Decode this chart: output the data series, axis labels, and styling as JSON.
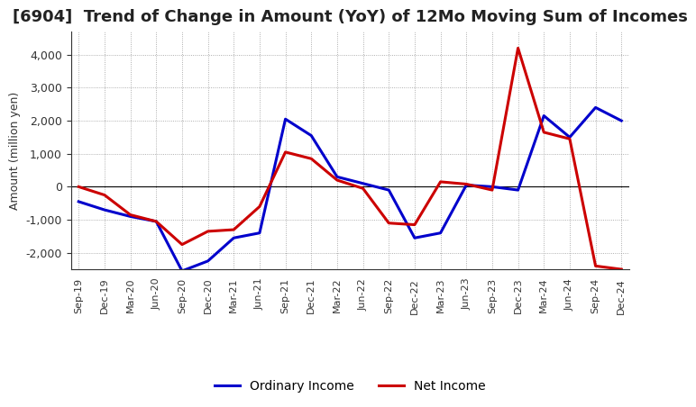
{
  "title": "[6904]  Trend of Change in Amount (YoY) of 12Mo Moving Sum of Incomes",
  "ylabel": "Amount (million yen)",
  "x_labels": [
    "Sep-19",
    "Dec-19",
    "Mar-20",
    "Jun-20",
    "Sep-20",
    "Dec-20",
    "Mar-21",
    "Jun-21",
    "Sep-21",
    "Dec-21",
    "Mar-22",
    "Jun-22",
    "Sep-22",
    "Dec-22",
    "Mar-23",
    "Jun-23",
    "Sep-23",
    "Dec-23",
    "Mar-24",
    "Jun-24",
    "Sep-24",
    "Dec-24"
  ],
  "ordinary_income": [
    -450,
    -700,
    -900,
    -1050,
    -2550,
    -2250,
    -1550,
    -1400,
    2050,
    1550,
    300,
    100,
    -100,
    -1550,
    -1400,
    50,
    0,
    -100,
    2150,
    1500,
    2400,
    2000
  ],
  "net_income": [
    0,
    -250,
    -850,
    -1050,
    -1750,
    -1350,
    -1300,
    -600,
    1050,
    850,
    200,
    -50,
    -1100,
    -1150,
    150,
    80,
    -100,
    4200,
    1650,
    1450,
    -2400,
    -2500
  ],
  "ordinary_color": "#0000cc",
  "net_color": "#cc0000",
  "ylim": [
    -2500,
    4700
  ],
  "yticks": [
    -2000,
    -1000,
    0,
    1000,
    2000,
    3000,
    4000
  ],
  "background_color": "#ffffff",
  "grid_color": "#999999",
  "title_fontsize": 13,
  "title_color": "#222222",
  "axis_fontsize": 9,
  "tick_fontsize": 8,
  "legend_fontsize": 10,
  "linewidth": 2.2
}
